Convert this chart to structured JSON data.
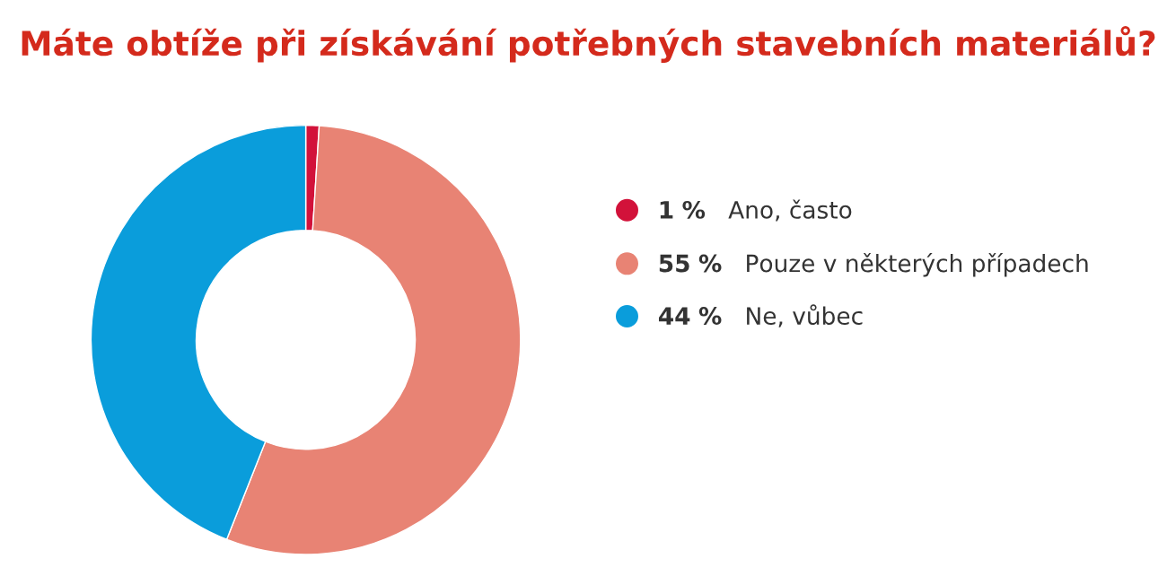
{
  "chart_data": {
    "type": "donut",
    "title": "Máte obtíže při získávání potřebných stavebních materiálů?",
    "categories": [
      "Ano, často",
      "Pouze v některých případech",
      "Ne, vůbec"
    ],
    "values": [
      1,
      55,
      44
    ],
    "value_labels": [
      "1 %",
      "55 %",
      "44 %"
    ],
    "colors": [
      "#d2123a",
      "#e88374",
      "#0a9ddb"
    ],
    "legend": "right"
  }
}
